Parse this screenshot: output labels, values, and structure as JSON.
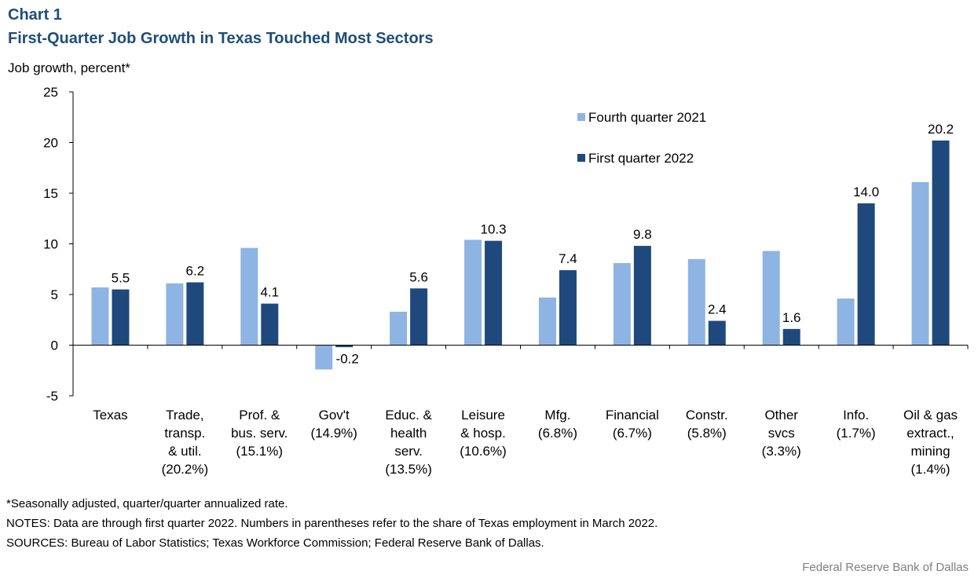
{
  "header": {
    "chart_number": "Chart 1",
    "title": "First-Quarter Job Growth in Texas Touched Most Sectors",
    "ylabel": "Job growth, percent*"
  },
  "footnotes": {
    "note1": "*Seasonally adjusted, quarter/quarter annualized rate.",
    "note2": "NOTES: Data are through first quarter 2022. Numbers in parentheses refer to the share of Texas employment in March 2022.",
    "note3": "SOURCES: Bureau of Labor Statistics; Texas Workforce Commission; Federal Reserve Bank of Dallas."
  },
  "credit": "Federal Reserve Bank of Dallas",
  "colors": {
    "q4_2021": "#8eb4e3",
    "q1_2022": "#1f497d"
  },
  "chart_data": {
    "type": "bar",
    "title": "First-Quarter Job Growth in Texas Touched Most Sectors",
    "ylabel": "Job growth, percent*",
    "xlabel": "",
    "ylim": [
      -5,
      25
    ],
    "yticks": [
      -5,
      0,
      5,
      10,
      15,
      20,
      25
    ],
    "legend_position": "top-right",
    "categories": [
      [
        "Texas"
      ],
      [
        "Trade,",
        "transp.",
        "& util.",
        "(20.2%)"
      ],
      [
        "Prof. &",
        "bus. serv.",
        "(15.1%)"
      ],
      [
        "Gov't",
        "(14.9%)"
      ],
      [
        "Educ. &",
        "health",
        "serv.",
        "(13.5%)"
      ],
      [
        "Leisure",
        "& hosp.",
        "(10.6%)"
      ],
      [
        "Mfg.",
        "(6.8%)"
      ],
      [
        "Financial",
        "(6.7%)"
      ],
      [
        "Constr.",
        "(5.8%)"
      ],
      [
        "Other",
        "svcs",
        "(3.3%)"
      ],
      [
        "Info.",
        "(1.7%)"
      ],
      [
        "Oil & gas",
        "extract.,",
        "mining",
        "(1.4%)"
      ]
    ],
    "series": [
      {
        "name": "Fourth quarter 2021",
        "color": "#8eb4e3",
        "values": [
          5.7,
          6.1,
          9.6,
          -2.4,
          3.3,
          10.4,
          4.7,
          8.1,
          8.5,
          9.3,
          4.6,
          16.1
        ],
        "labels": []
      },
      {
        "name": "First quarter 2022",
        "color": "#1f497d",
        "values": [
          5.5,
          6.2,
          4.1,
          -0.2,
          5.6,
          10.3,
          7.4,
          9.8,
          2.4,
          1.6,
          14.0,
          20.2
        ],
        "labels": [
          "5.5",
          "6.2",
          "4.1",
          "-0.2",
          "5.6",
          "10.3",
          "7.4",
          "9.8",
          "2.4",
          "1.6",
          "14.0",
          "20.2"
        ]
      }
    ]
  }
}
